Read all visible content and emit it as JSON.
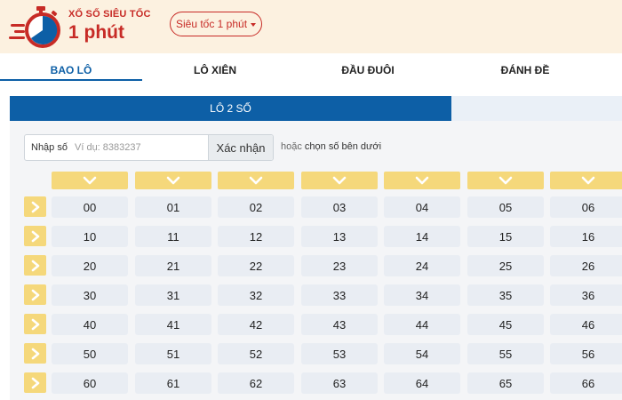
{
  "header": {
    "logo_subtitle": "XỔ SỐ SIÊU TỐC",
    "logo_title": "1 phút",
    "mode_select": "Siêu tốc 1 phút"
  },
  "tabs": [
    {
      "label": "BAO LÔ",
      "active": true
    },
    {
      "label": "LÔ XIÊN",
      "active": false
    },
    {
      "label": "ĐẦU ĐUÔI",
      "active": false
    },
    {
      "label": "ĐÁNH ĐỀ",
      "active": false
    }
  ],
  "subtab": {
    "label": "LÔ 2 SỐ"
  },
  "input": {
    "label": "Nhập số",
    "placeholder": "Ví dụ: 8383237",
    "value": "",
    "confirm_label": "Xác nhận",
    "hint_prefix": "hoặc",
    "hint_text": "chọn số bên dưới"
  },
  "grid": {
    "rows": [
      [
        "00",
        "01",
        "02",
        "03",
        "04",
        "05",
        "06"
      ],
      [
        "10",
        "11",
        "12",
        "13",
        "14",
        "15",
        "16"
      ],
      [
        "20",
        "21",
        "22",
        "23",
        "24",
        "25",
        "26"
      ],
      [
        "30",
        "31",
        "32",
        "33",
        "34",
        "35",
        "36"
      ],
      [
        "40",
        "41",
        "42",
        "43",
        "44",
        "45",
        "46"
      ],
      [
        "50",
        "51",
        "52",
        "53",
        "54",
        "55",
        "56"
      ],
      [
        "60",
        "61",
        "62",
        "63",
        "64",
        "65",
        "66"
      ]
    ]
  },
  "colors": {
    "brand_red": "#c72b26",
    "accent_blue": "#0d5fa6",
    "header_bg": "#fcf1e0",
    "selector_yellow": "#f5d87b",
    "cell_bg": "#e9edf3"
  },
  "icons": {
    "logo": "stopwatch-icon",
    "column_select": "chevron-down-icon",
    "row_select": "chevron-right-icon"
  }
}
